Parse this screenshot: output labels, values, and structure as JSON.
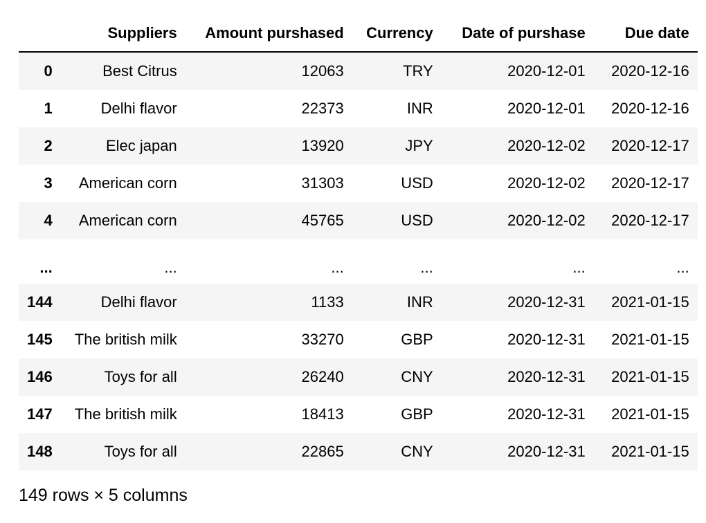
{
  "table": {
    "columns": [
      "",
      "Suppliers",
      "Amount purshased",
      "Currency",
      "Date of purshase",
      "Due date"
    ],
    "rows": [
      {
        "index": "0",
        "cells": [
          "Best Citrus",
          "12063",
          "TRY",
          "2020-12-01",
          "2020-12-16"
        ]
      },
      {
        "index": "1",
        "cells": [
          "Delhi flavor",
          "22373",
          "INR",
          "2020-12-01",
          "2020-12-16"
        ]
      },
      {
        "index": "2",
        "cells": [
          "Elec japan",
          "13920",
          "JPY",
          "2020-12-02",
          "2020-12-17"
        ]
      },
      {
        "index": "3",
        "cells": [
          "American corn",
          "31303",
          "USD",
          "2020-12-02",
          "2020-12-17"
        ]
      },
      {
        "index": "4",
        "cells": [
          "American corn",
          "45765",
          "USD",
          "2020-12-02",
          "2020-12-17"
        ]
      },
      {
        "index": "...",
        "cells": [
          "...",
          "...",
          "...",
          "...",
          "..."
        ]
      },
      {
        "index": "144",
        "cells": [
          "Delhi flavor",
          "1133",
          "INR",
          "2020-12-31",
          "2021-01-15"
        ]
      },
      {
        "index": "145",
        "cells": [
          "The british milk",
          "33270",
          "GBP",
          "2020-12-31",
          "2021-01-15"
        ]
      },
      {
        "index": "146",
        "cells": [
          "Toys for all",
          "26240",
          "CNY",
          "2020-12-31",
          "2021-01-15"
        ]
      },
      {
        "index": "147",
        "cells": [
          "The british milk",
          "18413",
          "GBP",
          "2020-12-31",
          "2021-01-15"
        ]
      },
      {
        "index": "148",
        "cells": [
          "Toys for all",
          "22865",
          "CNY",
          "2020-12-31",
          "2021-01-15"
        ]
      }
    ]
  },
  "shape_info": "149 rows × 5 columns"
}
